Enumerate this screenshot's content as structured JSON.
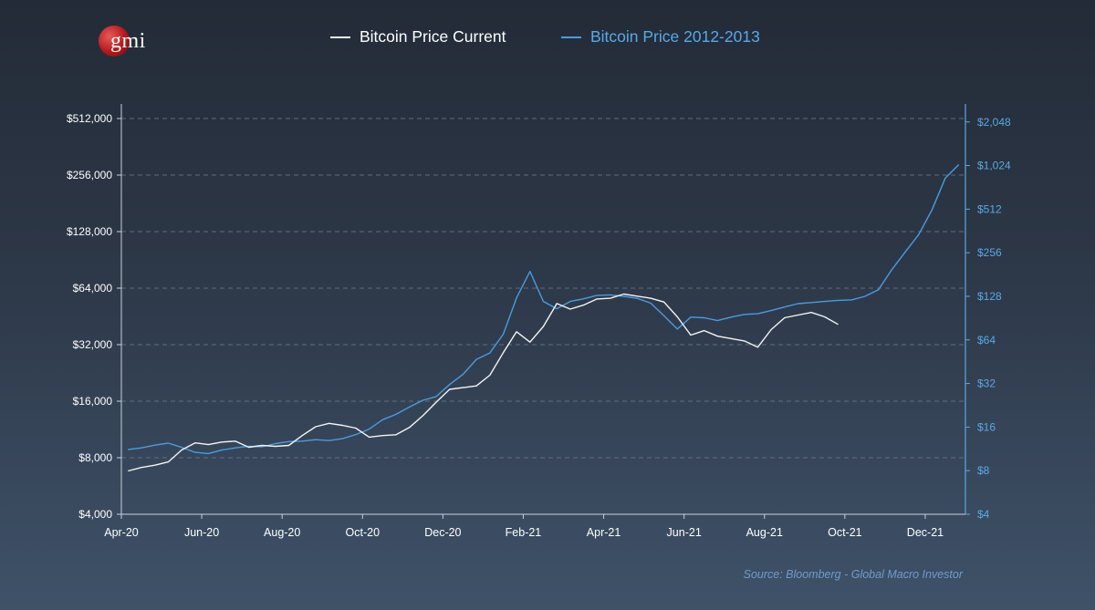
{
  "logo": {
    "text": "gmi"
  },
  "colors": {
    "current": "#f4f4f4",
    "historic": "#4a9bdf",
    "left_axis": "#ffffff",
    "right_axis": "#5aa8e6",
    "grid": "#6b7a8c",
    "source": "#6e9ccc"
  },
  "source": "Source: Bloomberg - Global Macro Investor",
  "chart_data": {
    "type": "line",
    "xlabel": "",
    "x_ticks": [
      "Apr-20",
      "Jun-20",
      "Aug-20",
      "Oct-20",
      "Dec-20",
      "Feb-21",
      "Apr-21",
      "Jun-21",
      "Aug-21",
      "Oct-21",
      "Dec-21"
    ],
    "x_range": [
      "Apr-20",
      "Jan-22"
    ],
    "scale": "log2",
    "grid": "horizontal dashed",
    "legend_position": "top",
    "y_left": {
      "ticks": [
        "$4,000",
        "$8,000",
        "$16,000",
        "$32,000",
        "$64,000",
        "$128,000",
        "$256,000",
        "$512,000"
      ],
      "range": [
        4000,
        512000
      ]
    },
    "y_right": {
      "ticks": [
        "$4",
        "$8",
        "$16",
        "$32",
        "$64",
        "$128",
        "$256",
        "$512",
        "$1,024",
        "$2,048"
      ],
      "range": [
        4,
        2500
      ]
    },
    "series": [
      {
        "name": "Bitcoin Price Current",
        "axis": "left",
        "x": [
          "Apr-20",
          "Apr-20",
          "Apr-20",
          "May-20",
          "May-20",
          "May-20",
          "Jun-20",
          "Jun-20",
          "Jun-20",
          "Jul-20",
          "Jul-20",
          "Jul-20",
          "Aug-20",
          "Aug-20",
          "Aug-20",
          "Sep-20",
          "Sep-20",
          "Sep-20",
          "Oct-20",
          "Oct-20",
          "Oct-20",
          "Nov-20",
          "Nov-20",
          "Nov-20",
          "Dec-20",
          "Dec-20",
          "Dec-20",
          "Jan-21",
          "Jan-21",
          "Jan-21",
          "Feb-21",
          "Feb-21",
          "Feb-21",
          "Mar-21",
          "Mar-21",
          "Mar-21",
          "Apr-21",
          "Apr-21",
          "Apr-21",
          "May-21",
          "May-21",
          "May-21",
          "Jun-21",
          "Jun-21",
          "Jun-21",
          "Jul-21",
          "Jul-21",
          "Jul-21",
          "Aug-21",
          "Aug-21",
          "Aug-21",
          "Sep-21",
          "Sep-21",
          "Sep-21"
        ],
        "y": [
          6800,
          7100,
          7300,
          7600,
          8800,
          9600,
          9400,
          9700,
          9800,
          9100,
          9300,
          9200,
          9300,
          10500,
          11700,
          12200,
          11900,
          11500,
          10300,
          10500,
          10600,
          11600,
          13400,
          15800,
          18500,
          18900,
          19300,
          22000,
          29000,
          37500,
          33000,
          40000,
          53000,
          49500,
          52000,
          56000,
          56500,
          59500,
          58000,
          56500,
          54000,
          45000,
          36000,
          38000,
          35500,
          34500,
          33500,
          31000,
          38500,
          44500,
          46000,
          47500,
          45000,
          41000
        ]
      },
      {
        "name": "Bitcoin Price 2012-2013",
        "axis": "right",
        "x": [
          "Apr-20",
          "Apr-20",
          "Apr-20",
          "May-20",
          "May-20",
          "May-20",
          "Jun-20",
          "Jun-20",
          "Jun-20",
          "Jul-20",
          "Jul-20",
          "Jul-20",
          "Aug-20",
          "Aug-20",
          "Aug-20",
          "Sep-20",
          "Sep-20",
          "Sep-20",
          "Oct-20",
          "Oct-20",
          "Oct-20",
          "Nov-20",
          "Nov-20",
          "Nov-20",
          "Dec-20",
          "Dec-20",
          "Dec-20",
          "Jan-21",
          "Jan-21",
          "Jan-21",
          "Feb-21",
          "Feb-21",
          "Feb-21",
          "Mar-21",
          "Mar-21",
          "Mar-21",
          "Apr-21",
          "Apr-21",
          "Apr-21",
          "May-21",
          "May-21",
          "May-21",
          "Jun-21",
          "Jun-21",
          "Jun-21",
          "Jul-21",
          "Jul-21",
          "Jul-21",
          "Aug-21",
          "Aug-21",
          "Aug-21",
          "Sep-21",
          "Sep-21",
          "Sep-21",
          "Oct-21",
          "Oct-21",
          "Oct-21",
          "Nov-21",
          "Nov-21",
          "Nov-21",
          "Dec-21",
          "Dec-21",
          "Dec-21"
        ],
        "y": [
          11.2,
          11.5,
          12,
          12.4,
          11.6,
          10.7,
          10.5,
          11.1,
          11.5,
          11.8,
          11.7,
          12.3,
          12.7,
          12.8,
          13.1,
          12.9,
          13.3,
          14.2,
          15.5,
          18,
          19.6,
          22,
          24.5,
          26,
          31.5,
          37,
          47,
          52,
          70,
          125,
          190,
          118,
          105,
          118,
          123,
          130,
          131,
          128,
          124,
          115,
          94,
          76,
          92,
          91,
          87,
          92,
          96,
          97,
          102,
          108,
          114,
          116,
          118,
          120,
          121,
          128,
          142,
          195,
          258,
          340,
          505,
          840,
          1040
        ]
      }
    ]
  }
}
